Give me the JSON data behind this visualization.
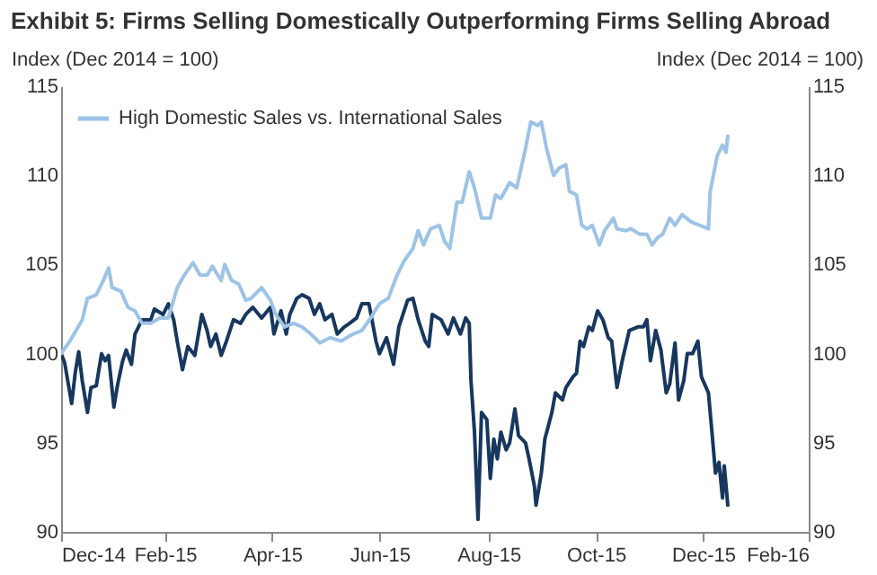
{
  "chart_data": {
    "type": "line",
    "title": "Exhibit 5: Firms Selling Domestically Outperforming Firms Selling Abroad",
    "ylabel": "Index (Dec 2014 = 100)",
    "y2label": "Index (Dec 2014 = 100)",
    "xlim": [
      "2014-12-31",
      "2016-02-29"
    ],
    "xticks": [
      {
        "value": "2014-12-31",
        "label": "Dec-14"
      },
      {
        "value": "2015-02-28",
        "label": "Feb-15"
      },
      {
        "value": "2015-04-30",
        "label": "Apr-15"
      },
      {
        "value": "2015-06-30",
        "label": "Jun-15"
      },
      {
        "value": "2015-08-31",
        "label": "Aug-15"
      },
      {
        "value": "2015-10-31",
        "label": "Oct-15"
      },
      {
        "value": "2015-12-31",
        "label": "Dec-15"
      },
      {
        "value": "2016-02-29",
        "label": "Feb-16"
      }
    ],
    "ylim": [
      90,
      115
    ],
    "yticks": [
      90,
      95,
      100,
      105,
      110,
      115
    ],
    "y2lim": [
      90,
      115
    ],
    "y2ticks": [
      90,
      95,
      100,
      105,
      110,
      115
    ],
    "grid": false,
    "legend": "top left",
    "marker": "none",
    "line_style": "solid",
    "series": [
      {
        "color": "#17375e",
        "x": [
          "2014-12-31",
          "2015-01-02",
          "2015-01-06",
          "2015-01-08",
          "2015-01-10",
          "2015-01-12",
          "2015-01-15",
          "2015-01-17",
          "2015-01-20",
          "2015-01-23",
          "2015-01-25",
          "2015-01-27",
          "2015-01-30",
          "2015-02-01",
          "2015-02-04",
          "2015-02-06",
          "2015-02-09",
          "2015-02-11",
          "2015-02-15",
          "2015-02-20",
          "2015-02-22",
          "2015-02-27",
          "2015-03-02",
          "2015-03-05",
          "2015-03-07",
          "2015-03-10",
          "2015-03-13",
          "2015-03-17",
          "2015-03-21",
          "2015-03-24",
          "2015-03-26",
          "2015-03-29",
          "2015-04-01",
          "2015-04-04",
          "2015-04-08",
          "2015-04-12",
          "2015-04-15",
          "2015-04-19",
          "2015-04-24",
          "2015-04-29",
          "2015-05-01",
          "2015-05-05",
          "2015-05-08",
          "2015-05-10",
          "2015-05-14",
          "2015-05-17",
          "2015-05-21",
          "2015-05-24",
          "2015-05-27",
          "2015-05-30",
          "2015-06-03",
          "2015-06-06",
          "2015-06-10",
          "2015-06-13",
          "2015-06-17",
          "2015-06-20",
          "2015-06-24",
          "2015-06-28",
          "2015-06-30",
          "2015-07-04",
          "2015-07-08",
          "2015-07-11",
          "2015-07-16",
          "2015-07-19",
          "2015-07-22",
          "2015-07-26",
          "2015-07-28",
          "2015-07-30",
          "2015-08-04",
          "2015-08-08",
          "2015-08-11",
          "2015-08-15",
          "2015-08-18",
          "2015-08-20",
          "2015-08-21",
          "2015-08-23",
          "2015-08-25",
          "2015-08-27",
          "2015-08-30",
          "2015-09-01",
          "2015-09-03",
          "2015-09-05",
          "2015-09-07",
          "2015-09-10",
          "2015-09-12",
          "2015-09-15",
          "2015-09-17",
          "2015-09-21",
          "2015-09-23",
          "2015-09-26",
          "2015-09-27",
          "2015-09-30",
          "2015-10-02",
          "2015-10-06",
          "2015-10-08",
          "2015-10-12",
          "2015-10-14",
          "2015-10-18",
          "2015-10-20",
          "2015-10-22",
          "2015-10-24",
          "2015-10-27",
          "2015-10-29",
          "2015-11-01",
          "2015-11-04",
          "2015-11-07",
          "2015-11-09",
          "2015-11-12",
          "2015-11-15",
          "2015-11-19",
          "2015-11-24",
          "2015-11-27",
          "2015-11-29",
          "2015-12-01",
          "2015-12-04",
          "2015-12-07",
          "2015-12-10",
          "2015-12-12",
          "2015-12-15",
          "2015-12-17",
          "2015-12-20",
          "2015-12-22",
          "2015-12-25",
          "2015-12-28",
          "2015-12-30",
          "2016-01-03",
          "2016-01-05",
          "2016-01-07",
          "2016-01-09",
          "2016-01-11",
          "2016-01-12",
          "2016-01-14"
        ],
        "values": [
          100.0,
          99.5,
          97.2,
          98.9,
          100.1,
          98.5,
          96.7,
          98.1,
          98.2,
          100.0,
          99.6,
          99.9,
          97.0,
          98.2,
          99.6,
          100.2,
          99.4,
          101.1,
          101.9,
          101.9,
          102.5,
          102.2,
          102.8,
          101.9,
          100.7,
          99.1,
          100.4,
          99.9,
          102.2,
          101.3,
          100.4,
          101.1,
          99.9,
          100.7,
          101.9,
          101.7,
          102.2,
          102.6,
          102.0,
          102.6,
          101.1,
          102.4,
          101.1,
          102.2,
          103.1,
          103.3,
          103.1,
          102.2,
          102.8,
          101.9,
          102.2,
          101.1,
          101.5,
          101.7,
          102.0,
          102.8,
          102.8,
          100.7,
          100.0,
          100.9,
          99.4,
          101.5,
          103.0,
          103.1,
          101.9,
          100.7,
          100.4,
          102.2,
          101.9,
          101.1,
          102.0,
          101.1,
          102.0,
          101.7,
          98.5,
          95.6,
          90.7,
          96.7,
          96.3,
          93.0,
          95.2,
          94.1,
          95.6,
          94.6,
          95.0,
          96.9,
          95.4,
          95.0,
          94.1,
          92.6,
          91.5,
          93.3,
          95.2,
          96.7,
          97.8,
          97.4,
          98.1,
          98.7,
          98.9,
          100.7,
          100.4,
          101.5,
          101.3,
          102.4,
          101.9,
          100.9,
          100.7,
          98.1,
          99.6,
          101.3,
          101.5,
          101.5,
          101.9,
          99.6,
          101.3,
          100.2,
          97.8,
          98.3,
          100.6,
          97.4,
          98.5,
          100.0,
          100.0,
          100.7,
          98.7,
          97.8,
          95.6,
          93.3,
          93.9,
          91.9,
          93.7,
          91.5
        ]
      },
      {
        "name": "High Domestic Sales vs. International Sales",
        "color": "#9dc3e6",
        "x": [
          "2014-12-31",
          "2015-01-05",
          "2015-01-12",
          "2015-01-15",
          "2015-01-20",
          "2015-01-24",
          "2015-01-27",
          "2015-01-29",
          "2015-02-03",
          "2015-02-07",
          "2015-02-11",
          "2015-02-15",
          "2015-02-20",
          "2015-02-25",
          "2015-03-02",
          "2015-03-07",
          "2015-03-11",
          "2015-03-16",
          "2015-03-20",
          "2015-03-24",
          "2015-03-27",
          "2015-04-01",
          "2015-04-03",
          "2015-04-07",
          "2015-04-11",
          "2015-04-15",
          "2015-04-18",
          "2015-04-24",
          "2015-04-29",
          "2015-05-02",
          "2015-05-07",
          "2015-05-12",
          "2015-05-17",
          "2015-05-22",
          "2015-05-27",
          "2015-06-02",
          "2015-06-08",
          "2015-06-15",
          "2015-06-20",
          "2015-06-25",
          "2015-06-30",
          "2015-07-05",
          "2015-07-10",
          "2015-07-14",
          "2015-07-19",
          "2015-07-22",
          "2015-07-25",
          "2015-07-29",
          "2015-08-03",
          "2015-08-06",
          "2015-08-09",
          "2015-08-13",
          "2015-08-16",
          "2015-08-20",
          "2015-08-23",
          "2015-08-27",
          "2015-09-01",
          "2015-09-04",
          "2015-09-07",
          "2015-09-12",
          "2015-09-16",
          "2015-09-21",
          "2015-09-24",
          "2015-09-28",
          "2015-09-30",
          "2015-10-03",
          "2015-10-07",
          "2015-10-10",
          "2015-10-14",
          "2015-10-16",
          "2015-10-20",
          "2015-10-23",
          "2015-10-26",
          "2015-10-29",
          "2015-11-02",
          "2015-11-05",
          "2015-11-10",
          "2015-11-12",
          "2015-11-17",
          "2015-11-20",
          "2015-11-25",
          "2015-11-29",
          "2015-12-02",
          "2015-12-05",
          "2015-12-08",
          "2015-12-12",
          "2015-12-15",
          "2015-12-19",
          "2015-12-24",
          "2015-12-29",
          "2016-01-03",
          "2016-01-04",
          "2016-01-08",
          "2016-01-11",
          "2016-01-13",
          "2016-01-14"
        ],
        "values": [
          100.0,
          100.7,
          101.9,
          103.1,
          103.3,
          104.1,
          104.8,
          103.7,
          103.5,
          102.6,
          102.4,
          101.7,
          101.7,
          102.0,
          102.0,
          103.7,
          104.4,
          105.1,
          104.4,
          104.4,
          104.9,
          104.1,
          105.0,
          104.1,
          103.9,
          103.0,
          103.1,
          103.7,
          103.0,
          102.2,
          101.5,
          101.7,
          101.5,
          101.1,
          100.6,
          100.9,
          100.7,
          101.1,
          101.3,
          102.0,
          102.8,
          103.1,
          104.4,
          105.2,
          105.9,
          106.9,
          106.1,
          107.0,
          107.2,
          106.3,
          105.9,
          108.5,
          108.5,
          110.2,
          109.3,
          107.6,
          107.6,
          108.9,
          108.7,
          109.6,
          109.3,
          111.5,
          113.0,
          112.8,
          113.0,
          111.5,
          110.0,
          110.4,
          110.6,
          109.1,
          108.9,
          107.2,
          107.0,
          107.2,
          106.1,
          106.9,
          107.6,
          107.0,
          106.9,
          107.0,
          106.7,
          106.7,
          106.1,
          106.5,
          106.7,
          107.6,
          107.2,
          107.8,
          107.4,
          107.2,
          107.0,
          109.1,
          111.1,
          111.7,
          111.3,
          112.2
        ]
      }
    ]
  }
}
